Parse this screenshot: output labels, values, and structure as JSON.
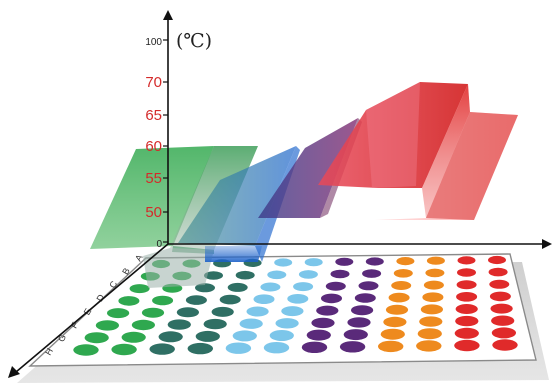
{
  "axis": {
    "unit": "(℃)",
    "ticks": [
      {
        "value": 0,
        "label": "0",
        "color": "#222222"
      },
      {
        "value": 50,
        "label": "50",
        "color": "#d42a2a"
      },
      {
        "value": 55,
        "label": "55",
        "color": "#d42a2a"
      },
      {
        "value": 60,
        "label": "60",
        "color": "#d42a2a"
      },
      {
        "value": 65,
        "label": "65",
        "color": "#d42a2a"
      },
      {
        "value": 70,
        "label": "70",
        "color": "#d42a2a"
      },
      {
        "value": 100,
        "label": "100",
        "color": "#222222"
      }
    ]
  },
  "plate": {
    "rows": [
      "A",
      "B",
      "C",
      "D",
      "E",
      "F",
      "G",
      "H"
    ],
    "columns": 12,
    "column_colors": [
      "#2fa84f",
      "#2fa84f",
      "#2f6f64",
      "#2f6f64",
      "#7cc6ea",
      "#7cc6ea",
      "#5a2a7a",
      "#5a2a7a",
      "#ee8a1e",
      "#ee8a1e",
      "#e02a2a",
      "#e02a2a"
    ]
  },
  "colors": {
    "green": "#3fae5a",
    "teal": "#2f7f8f",
    "blue": "#2c6fd0",
    "purple": "#6a3a8a",
    "red": "#e0303a",
    "axis": "#111111",
    "tick_red": "#d42a2a"
  }
}
